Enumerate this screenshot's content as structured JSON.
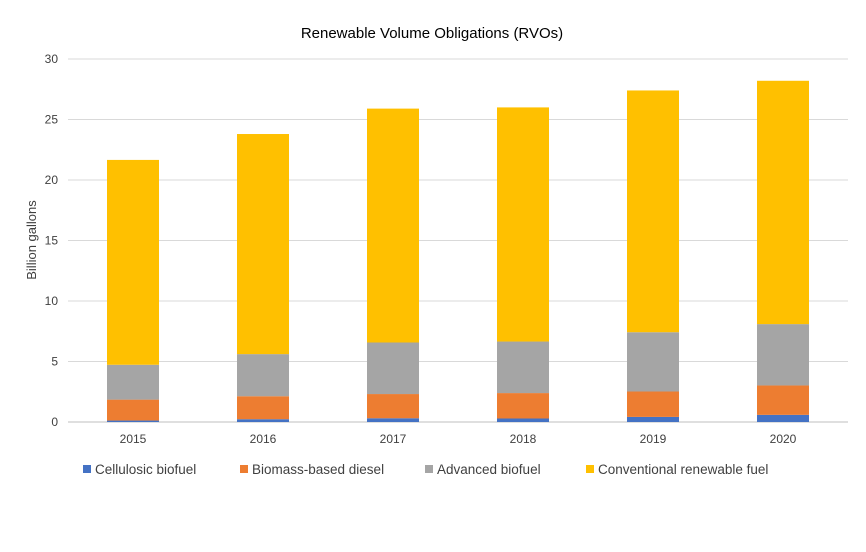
{
  "chart_data": {
    "type": "bar",
    "stacked": true,
    "title": "Renewable Volume Obligations (RVOs)",
    "xlabel": "",
    "ylabel": "Billion gallons",
    "ylim": [
      0,
      30
    ],
    "yticks": [
      0,
      5,
      10,
      15,
      20,
      25,
      30
    ],
    "grid": true,
    "legend_position": "bottom",
    "categories": [
      "2015",
      "2016",
      "2017",
      "2018",
      "2019",
      "2020"
    ],
    "series": [
      {
        "name": "Cellulosic biofuel",
        "color": "#4472C4",
        "values": [
          0.12,
          0.23,
          0.31,
          0.29,
          0.42,
          0.59
        ]
      },
      {
        "name": "Biomass-based diesel",
        "color": "#ED7D31",
        "values": [
          1.73,
          1.9,
          2.0,
          2.1,
          2.1,
          2.43
        ]
      },
      {
        "name": "Advanced biofuel",
        "color": "#A5A5A5",
        "values": [
          2.88,
          3.48,
          4.26,
          4.26,
          4.9,
          5.07
        ]
      },
      {
        "name": "Conventional renewable fuel",
        "color": "#FFC000",
        "values": [
          16.93,
          18.19,
          19.33,
          19.35,
          19.98,
          20.11
        ]
      }
    ]
  }
}
